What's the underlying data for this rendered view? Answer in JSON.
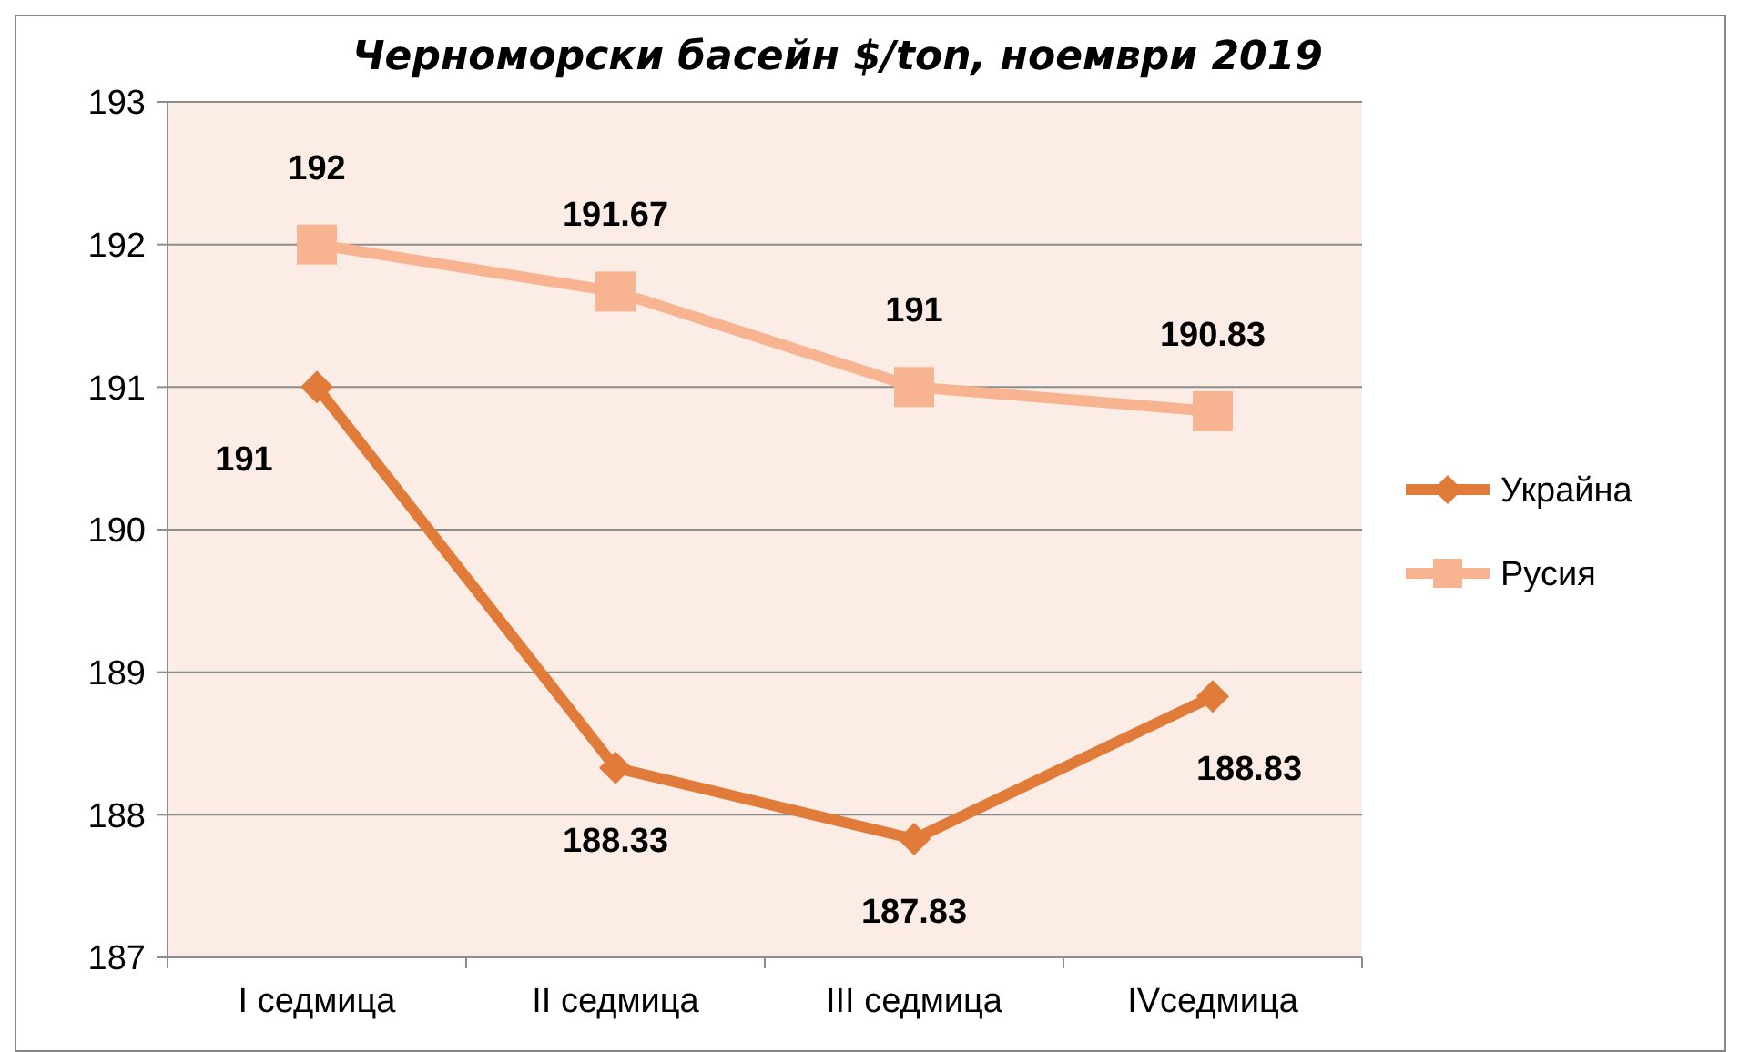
{
  "chart_data": {
    "type": "line",
    "title": "Черноморски басейн $/ton, ноември 2019",
    "categories": [
      "I седмица",
      "II седмица",
      "III седмица",
      "IVседмица"
    ],
    "series": [
      {
        "name": "Украйна",
        "color": "#e07b39",
        "values": [
          191,
          188.33,
          187.83,
          188.83
        ],
        "marker": "diamond"
      },
      {
        "name": "Русия",
        "color": "#f8b490",
        "values": [
          192,
          191.67,
          191,
          190.83
        ],
        "marker": "square"
      }
    ],
    "ylim": [
      187,
      193
    ],
    "yticks": [
      187,
      188,
      189,
      190,
      191,
      192,
      193
    ],
    "grid": "y",
    "legend": "right",
    "data_labels": true
  }
}
